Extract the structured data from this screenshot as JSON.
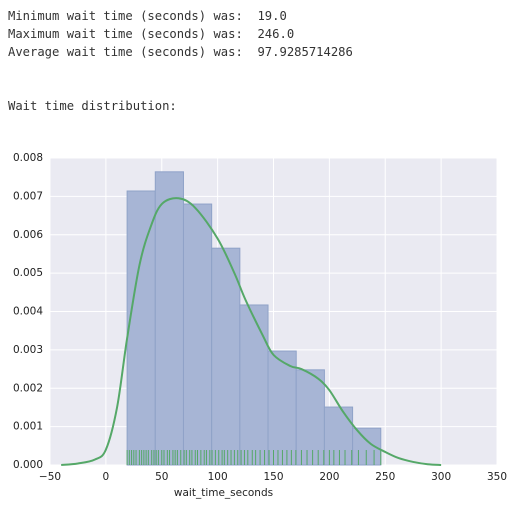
{
  "output_lines": [
    "Minimum wait time (seconds) was:  19.0",
    "Maximum wait time (seconds) was:  246.0",
    "Average wait time (seconds) was:  97.9285714286"
  ],
  "heading": "Wait time distribution:",
  "chart_data": {
    "type": "histogram",
    "xlabel": "wait_time_seconds",
    "bins": [
      19,
      44.22,
      69.44,
      94.67,
      119.89,
      145.11,
      170.33,
      195.56,
      220.78,
      246
    ],
    "values": [
      0.00714,
      0.00764,
      0.0068,
      0.00565,
      0.00417,
      0.00297,
      0.00248,
      0.00151,
      0.00096
    ],
    "color": "#a7b5d5",
    "edgecolor": "#8fa2c8",
    "kde": {
      "x": [
        -40,
        -25,
        -10,
        0,
        10,
        19,
        30,
        40,
        50,
        65,
        80,
        100,
        115,
        125,
        140,
        150,
        165,
        175,
        190,
        200,
        212,
        225,
        237,
        250,
        262,
        275,
        288,
        300
      ],
      "y": [
        0,
        4e-05,
        0.00014,
        0.0004,
        0.0015,
        0.0033,
        0.0052,
        0.0062,
        0.0068,
        0.00695,
        0.0067,
        0.0059,
        0.005,
        0.0043,
        0.0034,
        0.00287,
        0.00258,
        0.0025,
        0.00225,
        0.00195,
        0.0014,
        0.0009,
        0.00055,
        0.00034,
        0.00018,
        8e-05,
        2e-05,
        0
      ],
      "color": "#55a868"
    },
    "rug": {
      "values": [
        19,
        21,
        23,
        25,
        27,
        30,
        32,
        34,
        36,
        38,
        41,
        43,
        45,
        47,
        50,
        52,
        55,
        57,
        60,
        62,
        64,
        67,
        70,
        72,
        75,
        77,
        80,
        82,
        85,
        88,
        90,
        93,
        95,
        98,
        101,
        104,
        106,
        109,
        112,
        115,
        118,
        121,
        124,
        127,
        131,
        134,
        138,
        142,
        146,
        150,
        154,
        158,
        162,
        166,
        170,
        175,
        180,
        185,
        190,
        195,
        200,
        204,
        209,
        214,
        220,
        226,
        233,
        240,
        246
      ],
      "color": "#55a868"
    },
    "xlim": [
      -50,
      350
    ],
    "ylim": [
      0,
      0.008
    ],
    "xticks": [
      {
        "value": -50,
        "label": "−50"
      },
      0,
      50,
      100,
      150,
      200,
      250,
      300,
      350
    ],
    "yticks": [
      {
        "value": 0,
        "label": "0.000"
      },
      {
        "value": 0.001,
        "label": "0.001"
      },
      {
        "value": 0.002,
        "label": "0.002"
      },
      {
        "value": 0.003,
        "label": "0.003"
      },
      {
        "value": 0.004,
        "label": "0.004"
      },
      {
        "value": 0.005,
        "label": "0.005"
      },
      {
        "value": 0.006,
        "label": "0.006"
      },
      {
        "value": 0.007,
        "label": "0.007"
      },
      {
        "value": 0.008,
        "label": "0.008"
      }
    ],
    "grid": true,
    "background": "#eaeaf2"
  }
}
